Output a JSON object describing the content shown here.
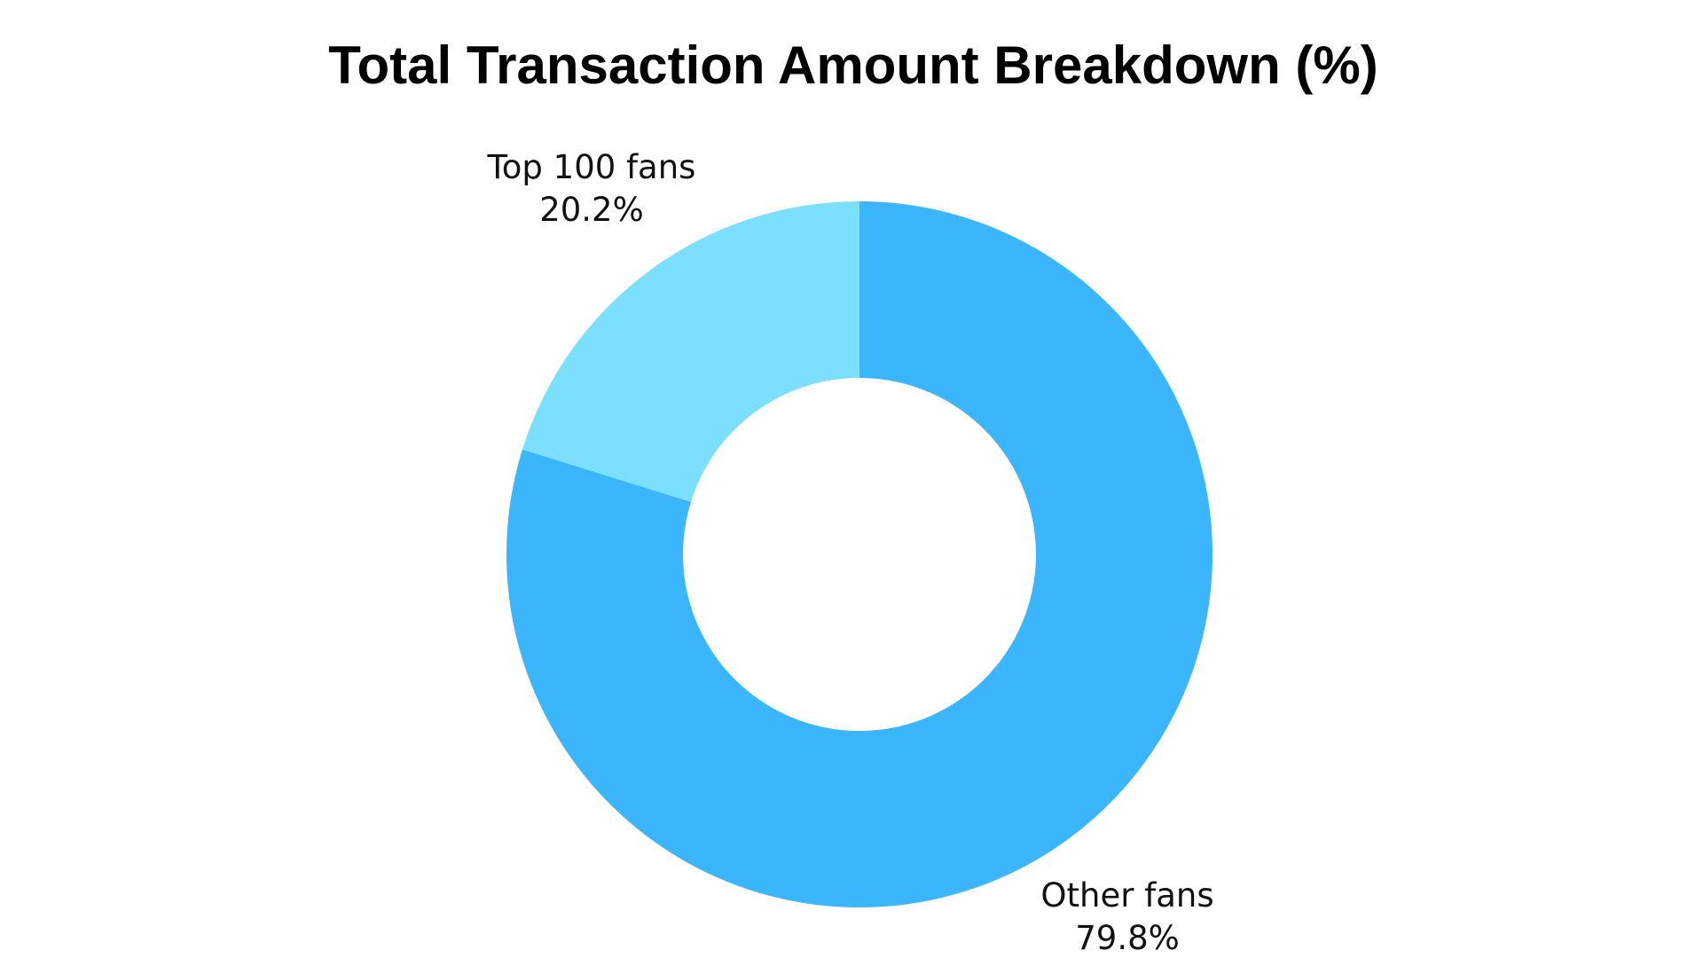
{
  "chart_data": {
    "type": "pie",
    "title": "Total Transaction Amount Breakdown (%)",
    "categories": [
      "Top 100 fans",
      "Other fans"
    ],
    "values": [
      20.2,
      79.8
    ],
    "value_labels": [
      "20.2%",
      "79.8%"
    ],
    "colors": [
      "#7bdffd",
      "#3bb5fc"
    ],
    "donut": true
  }
}
